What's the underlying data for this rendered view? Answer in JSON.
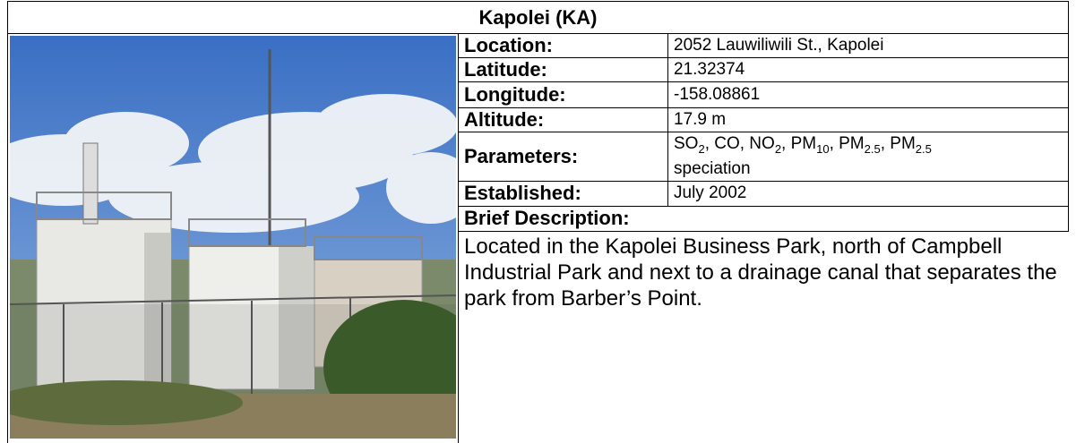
{
  "title": "Kapolei (KA)",
  "fields": [
    {
      "label": "Location:",
      "value": "2052 Lauwiliwili St., Kapolei"
    },
    {
      "label": "Latitude:",
      "value": "21.32374"
    },
    {
      "label": "Longitude:",
      "value": "-158.08861"
    },
    {
      "label": "Altitude:",
      "value": "17.9 m"
    }
  ],
  "parameters": {
    "label": "Parameters:",
    "runs": [
      {
        "text": "SO"
      },
      {
        "sub": "2"
      },
      {
        "text": ", CO, NO"
      },
      {
        "sub": "2"
      },
      {
        "text": ", PM"
      },
      {
        "sub": "10"
      },
      {
        "text": ", PM"
      },
      {
        "sub": "2.5"
      },
      {
        "text": ", PM"
      },
      {
        "sub": "2.5"
      },
      {
        "text": " speciation"
      }
    ]
  },
  "established": {
    "label": "Established:",
    "value": "July 2002"
  },
  "description": {
    "label": "Brief Description:",
    "text": "Located in the Kapolei Business Park, north of Campbell Industrial Park and next to a drainage canal that separates the park from Barber’s Point."
  }
}
